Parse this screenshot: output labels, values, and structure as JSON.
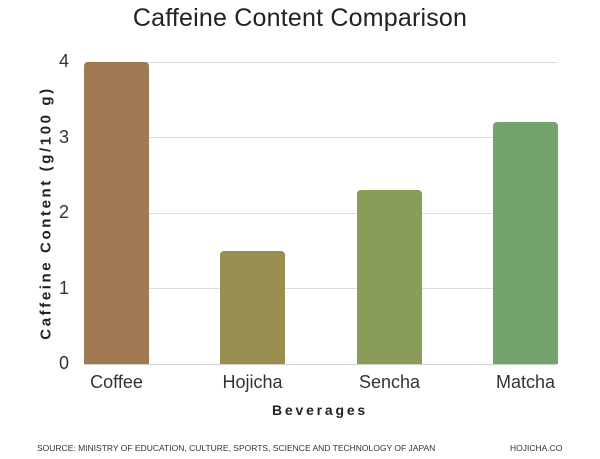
{
  "chart_data": {
    "type": "bar",
    "title": "Caffeine Content Comparison",
    "xlabel": "Beverages",
    "ylabel": "Caffeine Content (g/100 g)",
    "categories": [
      "Coffee",
      "Hojicha",
      "Sencha",
      "Matcha"
    ],
    "values": [
      4.0,
      1.5,
      2.3,
      3.2
    ],
    "colors": [
      "#a07a52",
      "#9a8d50",
      "#899c58",
      "#74a36d"
    ],
    "ylim": [
      0,
      4
    ],
    "yticks": [
      "0",
      "1",
      "2",
      "3",
      "4"
    ],
    "grid": true,
    "legend": null
  },
  "footer": {
    "source": "SOURCE: MINISTRY OF EDUCATION, CULTURE, SPORTS, SCIENCE AND TECHNOLOGY OF JAPAN",
    "brand": "HOJICHA.CO"
  }
}
